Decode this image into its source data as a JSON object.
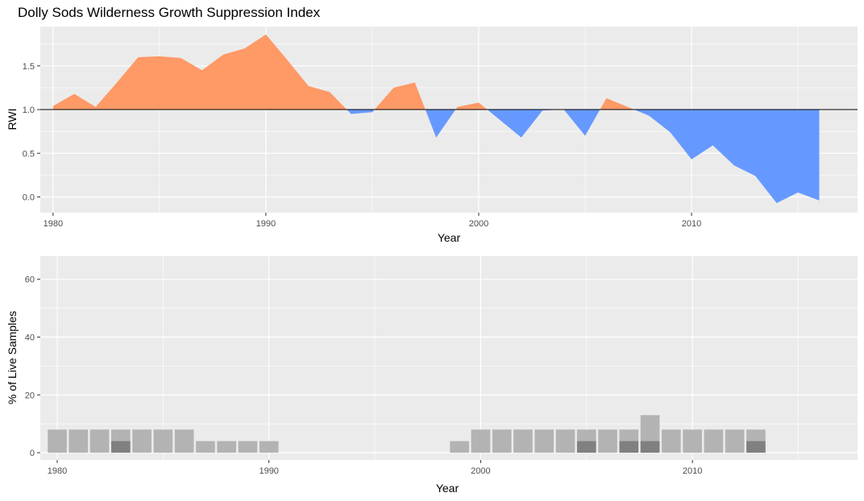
{
  "chart_data": [
    {
      "type": "area",
      "title": "Dolly Sods Wilderness Growth Suppression Index",
      "xlabel": "Year",
      "ylabel": "RWI",
      "xlim": [
        1979.4,
        2017.8
      ],
      "ylim": [
        -0.18,
        1.95
      ],
      "x_ticks": [
        1980,
        1990,
        2000,
        2010
      ],
      "y_ticks": [
        0.0,
        0.5,
        1.0,
        1.5
      ],
      "y_tick_labels": [
        "0.0",
        "0.5",
        "1.0",
        "1.5"
      ],
      "reference_line": 1.0,
      "grid": true,
      "colors": {
        "above": "#FF9966",
        "below": "#6699FF",
        "panel": "#EBEBEB",
        "grid": "#FFFFFF",
        "reference": "#000000"
      },
      "x": [
        1980,
        1981,
        1982,
        1983,
        1984,
        1985,
        1986,
        1987,
        1988,
        1989,
        1990,
        1991,
        1992,
        1993,
        1994,
        1995,
        1996,
        1997,
        1998,
        1999,
        2000,
        2001,
        2002,
        2003,
        2004,
        2005,
        2006,
        2007,
        2008,
        2009,
        2010,
        2011,
        2012,
        2013,
        2014,
        2015,
        2016
      ],
      "y": [
        1.04,
        1.18,
        1.03,
        1.31,
        1.6,
        1.61,
        1.59,
        1.45,
        1.63,
        1.7,
        1.86,
        1.57,
        1.27,
        1.2,
        0.95,
        0.97,
        1.25,
        1.31,
        0.68,
        1.03,
        1.08,
        0.88,
        0.68,
        0.99,
        1.0,
        0.7,
        1.13,
        1.03,
        0.93,
        0.74,
        0.43,
        0.59,
        0.36,
        0.24,
        -0.07,
        0.05,
        -0.04
      ]
    },
    {
      "type": "bar",
      "title": "",
      "xlabel": "Year",
      "ylabel": "% of Live Samples",
      "xlim": [
        1979.2,
        2017.8
      ],
      "ylim": [
        -2.5,
        68
      ],
      "x_ticks": [
        1980,
        1990,
        2000,
        2010
      ],
      "y_ticks": [
        0,
        20,
        40,
        60
      ],
      "grid": true,
      "colors": {
        "light": "#B3B3B3",
        "dark": "#808080",
        "panel": "#EBEBEB",
        "grid": "#FFFFFF"
      },
      "x": [
        1980,
        1981,
        1982,
        1983,
        1984,
        1985,
        1986,
        1987,
        1988,
        1989,
        1990,
        1999,
        2000,
        2001,
        2002,
        2003,
        2004,
        2005,
        2006,
        2007,
        2008,
        2009,
        2010,
        2011,
        2012,
        2013
      ],
      "series": [
        {
          "values": [
            8,
            8,
            8,
            8,
            8,
            8,
            8,
            4,
            4,
            4,
            4,
            4,
            8,
            8,
            8,
            8,
            8,
            8,
            8,
            8,
            13,
            8,
            8,
            8,
            8,
            8
          ]
        },
        {
          "values": [
            0,
            0,
            0,
            4,
            0,
            0,
            0,
            0,
            0,
            0,
            0,
            0,
            0,
            0,
            0,
            0,
            0,
            4,
            0,
            4,
            4,
            0,
            0,
            0,
            0,
            4
          ]
        }
      ]
    }
  ]
}
